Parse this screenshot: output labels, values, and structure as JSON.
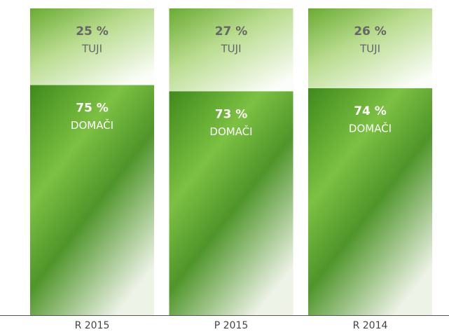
{
  "chart_data": {
    "type": "stacked_bar",
    "categories": [
      "R 2015",
      "P 2015",
      "R 2014"
    ],
    "series": [
      {
        "name": "DOMAČI",
        "color": "#5da42c",
        "values": [
          75,
          73,
          74
        ],
        "value_labels": [
          "75 %",
          "73 %",
          "74 %"
        ]
      },
      {
        "name": "TUJI",
        "color": "#9fcf6a",
        "values": [
          25,
          27,
          26
        ],
        "value_labels": [
          "25 %",
          "27 %",
          "26 %"
        ]
      }
    ],
    "ylim": [
      0,
      100
    ]
  }
}
